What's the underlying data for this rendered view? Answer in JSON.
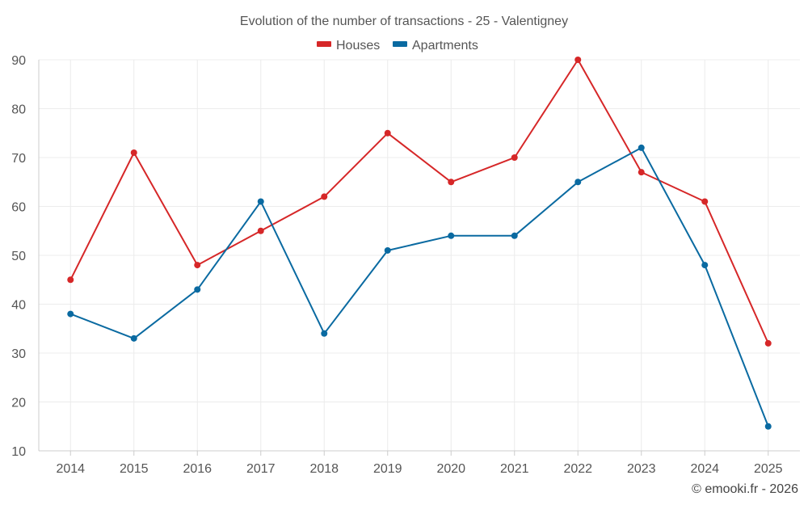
{
  "chart_data": {
    "type": "line",
    "title": "Evolution of the number of transactions - 25 - Valentigney",
    "categories": [
      "2014",
      "2015",
      "2016",
      "2017",
      "2018",
      "2019",
      "2020",
      "2021",
      "2022",
      "2023",
      "2024",
      "2025"
    ],
    "series": [
      {
        "name": "Houses",
        "color": "#d62728",
        "values": [
          45,
          71,
          48,
          55,
          62,
          75,
          65,
          70,
          90,
          67,
          61,
          32
        ]
      },
      {
        "name": "Apartments",
        "color": "#0a6aa1",
        "values": [
          38,
          33,
          43,
          61,
          34,
          51,
          54,
          54,
          65,
          72,
          48,
          15
        ]
      }
    ],
    "y_ticks": [
      10,
      20,
      30,
      40,
      50,
      60,
      70,
      80,
      90
    ],
    "ylim": [
      10,
      90
    ],
    "xlabel": "",
    "ylabel": "",
    "legend_position": "top-center",
    "grid": true,
    "credit": "© emooki.fr - 2026"
  }
}
